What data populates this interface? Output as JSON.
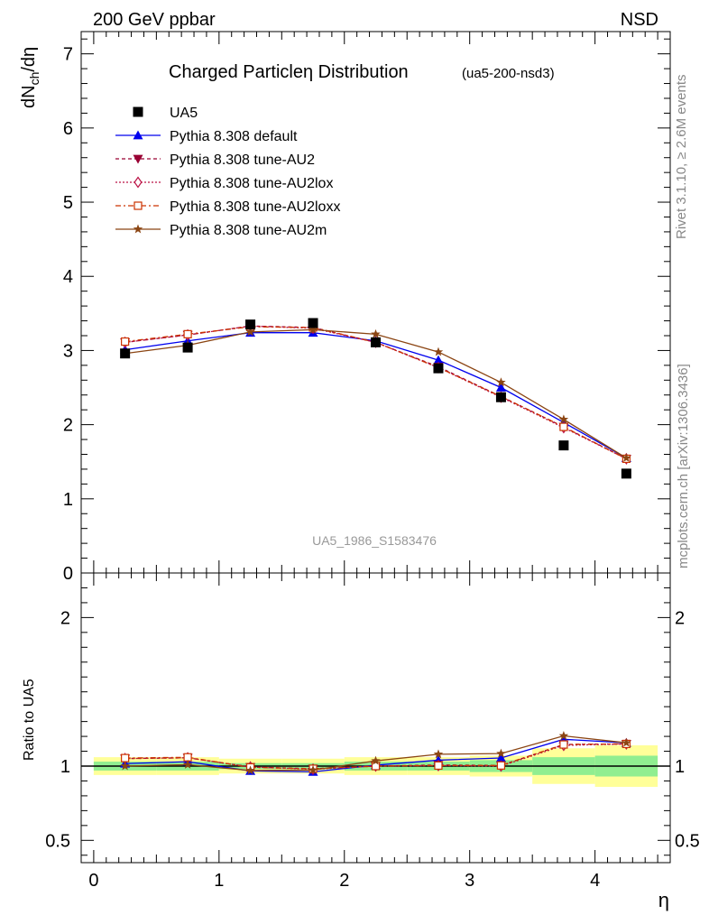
{
  "header": {
    "left": "200 GeV ppbar",
    "right": "NSD"
  },
  "side_labels": {
    "rivet": "Rivet 3.1.10, ≥ 2.6M events",
    "mcplots": "mcplots.cern.ch [arXiv:1306.3436]"
  },
  "watermark": "UA5_1986_S1583476",
  "chart_data": {
    "type": "line",
    "title": "Charged Particleη Distribution",
    "title_tag": "(ua5-200-nsd3)",
    "xlabel": "η",
    "ylabel_main": {
      "base": "dN",
      "sub": "ch",
      "rest": "/dη"
    },
    "ylabel_ratio": "Ratio to UA5",
    "xlim": [
      -0.1,
      4.6
    ],
    "ylim_main": [
      0,
      7.3
    ],
    "ylim_ratio": [
      0.35,
      2.3
    ],
    "x_ticks": [
      "0",
      "1",
      "2",
      "3",
      "4"
    ],
    "y_ticks_main": [
      "0",
      "1",
      "2",
      "3",
      "4",
      "5",
      "6",
      "7"
    ],
    "y_ticks_ratio": [
      "0.5",
      "1",
      "2"
    ],
    "x": [
      0.25,
      0.75,
      1.25,
      1.75,
      2.25,
      2.75,
      3.25,
      3.75,
      4.25
    ],
    "data": {
      "name": "UA5",
      "values": [
        2.96,
        3.04,
        3.35,
        3.37,
        3.11,
        2.76,
        2.37,
        1.72,
        1.34
      ]
    },
    "band_green": [
      0.03,
      0.03,
      0.02,
      0.02,
      0.03,
      0.03,
      0.04,
      0.06,
      0.07
    ],
    "band_yellow": [
      0.06,
      0.06,
      0.05,
      0.05,
      0.06,
      0.06,
      0.07,
      0.12,
      0.14
    ],
    "series": [
      {
        "name": "Pythia 8.308 default",
        "color": "#0000ee",
        "dash": "",
        "marker": "triangle-up",
        "values": [
          3.01,
          3.13,
          3.24,
          3.24,
          3.13,
          2.87,
          2.5,
          2.03,
          1.55
        ]
      },
      {
        "name": "Pythia 8.308 tune-AU2",
        "color": "#990033",
        "dash": "4,3",
        "marker": "triangle-down",
        "values": [
          3.11,
          3.21,
          3.33,
          3.31,
          3.11,
          2.78,
          2.38,
          1.97,
          1.54
        ]
      },
      {
        "name": "Pythia 8.308 tune-AU2lox",
        "color": "#bb1144",
        "dash": "2,2",
        "marker": "diamond-open",
        "values": [
          3.11,
          3.21,
          3.33,
          3.3,
          3.11,
          2.77,
          2.37,
          1.96,
          1.54
        ]
      },
      {
        "name": "Pythia 8.308 tune-AU2loxx",
        "color": "#cc3300",
        "dash": "6,3,2,3",
        "marker": "square-open",
        "values": [
          3.12,
          3.22,
          3.32,
          3.31,
          3.11,
          2.77,
          2.38,
          1.97,
          1.54
        ]
      },
      {
        "name": "Pythia 8.308 tune-AU2m",
        "color": "#8b4513",
        "dash": "",
        "marker": "star",
        "values": [
          2.96,
          3.07,
          3.25,
          3.28,
          3.22,
          2.98,
          2.57,
          2.07,
          1.55
        ]
      }
    ]
  }
}
